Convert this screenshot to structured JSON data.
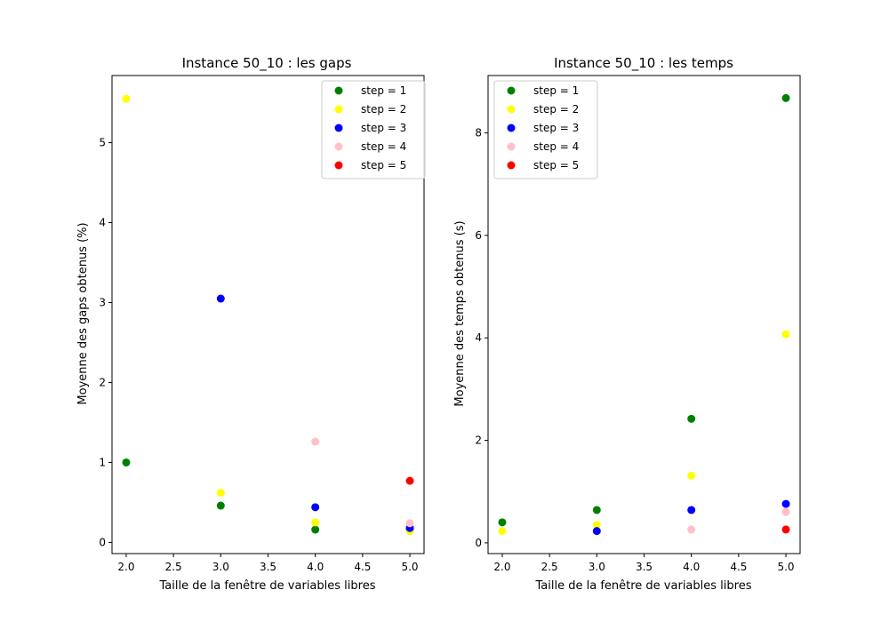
{
  "colors": {
    "step1": "#008000",
    "step2": "#ffff00",
    "step3": "#0000ff",
    "step4": "#ffc0cb",
    "step5": "#ff0000"
  },
  "chart_data": [
    {
      "type": "scatter",
      "title": "Instance 50_10 : les gaps",
      "xlabel": "Taille de la fenêtre de variables libres",
      "ylabel": "Moyenne des gaps obtenus (%)",
      "xlim": [
        1.85,
        5.15
      ],
      "ylim": [
        -0.14,
        5.84
      ],
      "xticks": [
        "2.0",
        "2.5",
        "3.0",
        "3.5",
        "4.0",
        "4.5",
        "5.0"
      ],
      "yticks": [
        "0",
        "1",
        "2",
        "3",
        "4",
        "5"
      ],
      "legend_position": "top-right",
      "series": [
        {
          "name": "step = 1",
          "color": "#008000",
          "x": [
            2,
            3,
            4,
            5
          ],
          "y": [
            1.0,
            0.46,
            0.16,
            0.16
          ]
        },
        {
          "name": "step = 2",
          "color": "#ffff00",
          "x": [
            2,
            3,
            4,
            5
          ],
          "y": [
            5.55,
            0.62,
            0.25,
            0.14
          ]
        },
        {
          "name": "step = 3",
          "color": "#0000ff",
          "x": [
            3,
            4,
            5
          ],
          "y": [
            3.05,
            0.44,
            0.18
          ]
        },
        {
          "name": "step = 4",
          "color": "#ffc0cb",
          "x": [
            4,
            5
          ],
          "y": [
            1.26,
            0.24
          ]
        },
        {
          "name": "step = 5",
          "color": "#ff0000",
          "x": [
            5
          ],
          "y": [
            0.77
          ]
        }
      ]
    },
    {
      "type": "scatter",
      "title": "Instance 50_10 : les temps",
      "xlabel": "Taille de la fenêtre de variables libres",
      "ylabel": "Moyenne des temps obtenus (s)",
      "xlim": [
        1.85,
        5.15
      ],
      "ylim": [
        -0.21,
        9.12
      ],
      "xticks": [
        "2.0",
        "2.5",
        "3.0",
        "3.5",
        "4.0",
        "4.5",
        "5.0"
      ],
      "yticks": [
        "0",
        "2",
        "4",
        "6",
        "8"
      ],
      "legend_position": "top-left",
      "series": [
        {
          "name": "step = 1",
          "color": "#008000",
          "x": [
            2,
            3,
            4,
            5
          ],
          "y": [
            0.4,
            0.64,
            2.42,
            8.68
          ]
        },
        {
          "name": "step = 2",
          "color": "#ffff00",
          "x": [
            2,
            3,
            4,
            5
          ],
          "y": [
            0.23,
            0.35,
            1.31,
            4.07
          ]
        },
        {
          "name": "step = 3",
          "color": "#0000ff",
          "x": [
            3,
            4,
            5
          ],
          "y": [
            0.23,
            0.64,
            0.76
          ]
        },
        {
          "name": "step = 4",
          "color": "#ffc0cb",
          "x": [
            4,
            5
          ],
          "y": [
            0.26,
            0.6
          ]
        },
        {
          "name": "step = 5",
          "color": "#ff0000",
          "x": [
            5
          ],
          "y": [
            0.26
          ]
        }
      ]
    }
  ]
}
